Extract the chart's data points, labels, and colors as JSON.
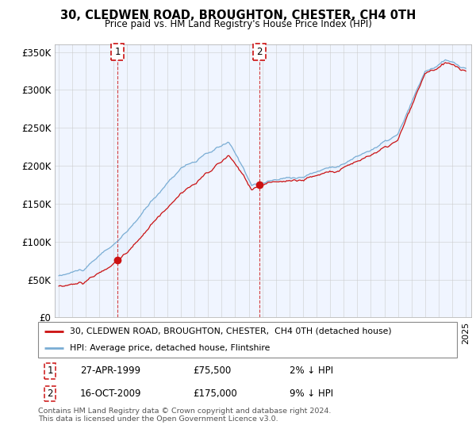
{
  "title": "30, CLEDWEN ROAD, BROUGHTON, CHESTER, CH4 0TH",
  "subtitle": "Price paid vs. HM Land Registry's House Price Index (HPI)",
  "legend_line1": "30, CLEDWEN ROAD, BROUGHTON, CHESTER,  CH4 0TH (detached house)",
  "legend_line2": "HPI: Average price, detached house, Flintshire",
  "annotation1_date": "27-APR-1999",
  "annotation1_price": "£75,500",
  "annotation1_hpi": "2% ↓ HPI",
  "annotation2_date": "16-OCT-2009",
  "annotation2_price": "£175,000",
  "annotation2_hpi": "9% ↓ HPI",
  "footer": "Contains HM Land Registry data © Crown copyright and database right 2024.\nThis data is licensed under the Open Government Licence v3.0.",
  "hpi_color": "#7aadd4",
  "price_color": "#cc1111",
  "fill_color": "#ddeeff",
  "annotation_color": "#cc1111",
  "ylim": [
    0,
    360000
  ],
  "yticks": [
    0,
    50000,
    100000,
    150000,
    200000,
    250000,
    300000,
    350000
  ],
  "sale1_year": 1999.32,
  "sale1_value": 75500,
  "sale2_year": 2009.79,
  "sale2_value": 175000,
  "xstart": 1995,
  "xend": 2025
}
